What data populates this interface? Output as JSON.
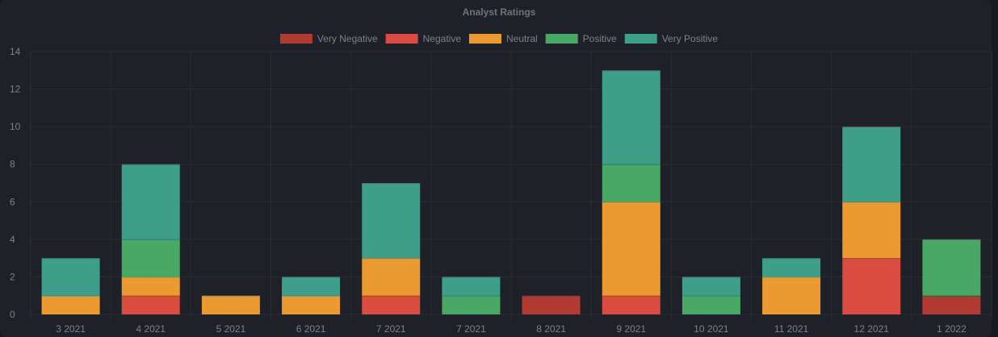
{
  "chart_data": {
    "type": "bar",
    "stacked": true,
    "title": "Analyst Ratings",
    "xlabel": "",
    "ylabel": "",
    "ylim": [
      0,
      14
    ],
    "yticks": [
      0,
      2,
      4,
      6,
      8,
      10,
      12,
      14
    ],
    "grid": true,
    "legend_position": "top",
    "categories": [
      "3 2021",
      "4 2021",
      "5 2021",
      "6 2021",
      "7 2021",
      "7 2021",
      "8 2021",
      "9 2021",
      "10 2021",
      "11 2021",
      "12 2021",
      "1 2022"
    ],
    "series": [
      {
        "name": "Very Negative",
        "color": "#b33a30",
        "values": [
          0,
          0,
          0,
          0,
          0,
          0,
          1,
          0,
          0,
          0,
          0,
          1
        ]
      },
      {
        "name": "Negative",
        "color": "#d94c3f",
        "values": [
          0,
          1,
          0,
          0,
          1,
          0,
          0,
          1,
          0,
          0,
          3,
          0
        ]
      },
      {
        "name": "Neutral",
        "color": "#ea9a30",
        "values": [
          1,
          1,
          1,
          1,
          2,
          0,
          0,
          5,
          0,
          2,
          3,
          0
        ]
      },
      {
        "name": "Positive",
        "color": "#48a864",
        "values": [
          0,
          2,
          0,
          0,
          0,
          1,
          0,
          2,
          1,
          0,
          0,
          3
        ]
      },
      {
        "name": "Very Positive",
        "color": "#3d9e89",
        "values": [
          2,
          4,
          0,
          1,
          4,
          1,
          0,
          5,
          1,
          1,
          4,
          0
        ]
      }
    ]
  }
}
